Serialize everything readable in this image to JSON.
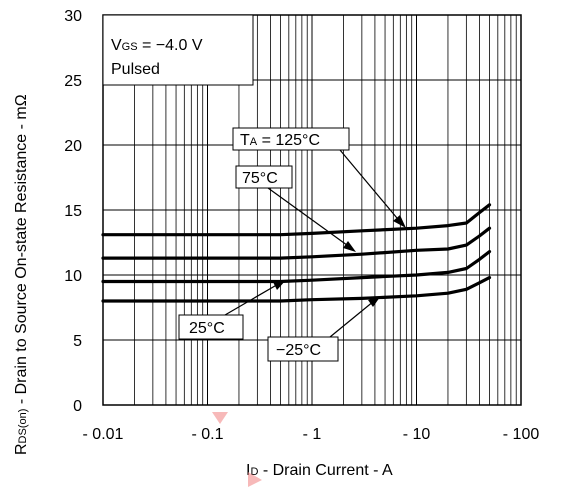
{
  "chart_data": {
    "type": "line",
    "title": "",
    "xlabel": {
      "main": "I",
      "sub": "D",
      "rest": " - Drain Current - A"
    },
    "ylabel": {
      "main": "R",
      "sub": "DS(on)",
      "rest": " - Drain to Source On-state Resistance - mΩ"
    },
    "x_scale": "log",
    "xlim": [
      0.01,
      100
    ],
    "ylim": [
      0,
      30
    ],
    "x_ticks": [
      0.01,
      0.1,
      1,
      10,
      100
    ],
    "x_tick_labels": [
      "- 0.01",
      "- 0.1",
      "- 1",
      "- 10",
      "- 100"
    ],
    "y_ticks": [
      0,
      5,
      10,
      15,
      20,
      25,
      30
    ],
    "y_tick_labels": [
      "0",
      "5",
      "10",
      "15",
      "20",
      "25",
      "30"
    ],
    "grid": true,
    "conditions": {
      "vgs": {
        "main": "V",
        "sub": "GS",
        "rest": " = −4.0 V"
      },
      "mode": "Pulsed"
    },
    "series": [
      {
        "name": "TA = 125°C",
        "label": {
          "main": "T",
          "sub": "A",
          "rest": " = 125°C"
        },
        "x": [
          0.01,
          0.5,
          1,
          3,
          10,
          20,
          30,
          40,
          50
        ],
        "y": [
          13.1,
          13.1,
          13.2,
          13.4,
          13.6,
          13.8,
          14.0,
          14.8,
          15.4
        ]
      },
      {
        "name": "75°C",
        "label": {
          "main": "75°C",
          "sub": "",
          "rest": ""
        },
        "x": [
          0.01,
          0.5,
          1,
          3,
          10,
          20,
          30,
          40,
          50
        ],
        "y": [
          11.3,
          11.3,
          11.4,
          11.6,
          11.9,
          12.0,
          12.3,
          13.0,
          13.6
        ]
      },
      {
        "name": "25°C",
        "label": {
          "main": "25°C",
          "sub": "",
          "rest": ""
        },
        "x": [
          0.01,
          0.5,
          1,
          3,
          10,
          20,
          30,
          40,
          50
        ],
        "y": [
          9.5,
          9.5,
          9.6,
          9.8,
          10.0,
          10.2,
          10.5,
          11.2,
          11.8
        ]
      },
      {
        "name": "−25°C",
        "label": {
          "main": "−25°C",
          "sub": "",
          "rest": ""
        },
        "x": [
          0.01,
          0.5,
          1,
          3,
          10,
          20,
          30,
          40,
          50
        ],
        "y": [
          8.0,
          8.0,
          8.1,
          8.2,
          8.4,
          8.6,
          8.9,
          9.4,
          9.8
        ]
      }
    ]
  }
}
